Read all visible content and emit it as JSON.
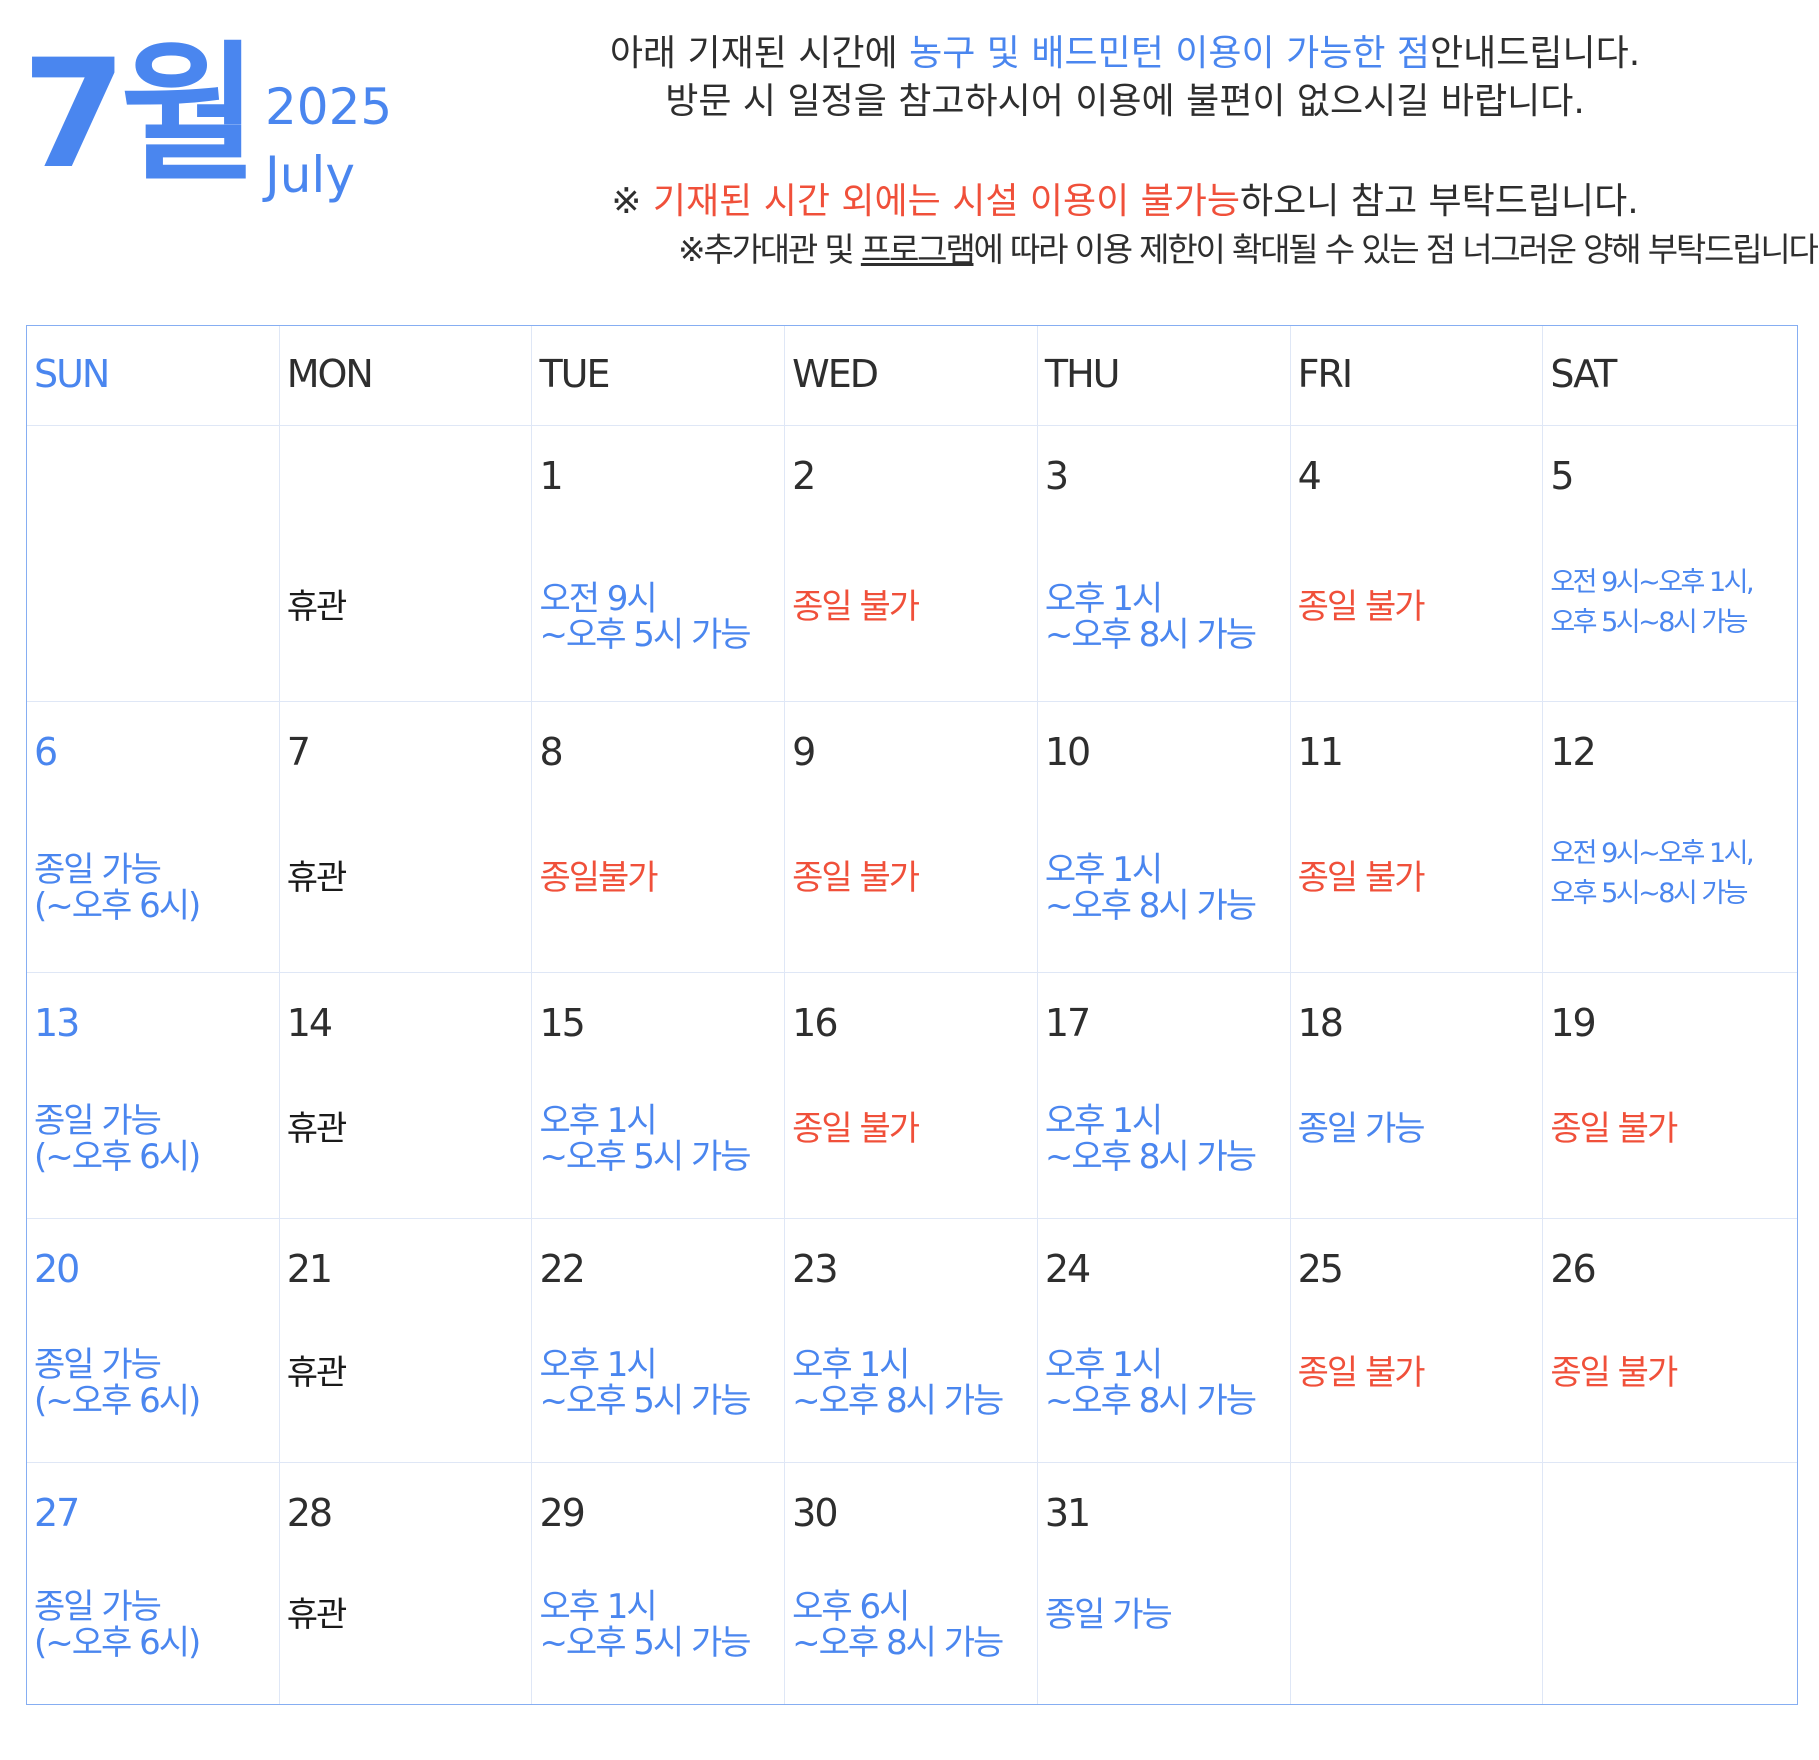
{
  "header": {
    "month_ko": "7월",
    "year": "2025",
    "month_en": "July"
  },
  "notice": {
    "line1_a": "아래 기재된 시간에 ",
    "line1_b": "농구 및 배드민턴 이용이 가능한 점",
    "line1_c": "안내드립니다.",
    "line2": "방문 시 일정을 참고하시어 이용에 불편이 없으시길 바랍니다.",
    "line3_a": "※ ",
    "line3_b": "기재된 시간 외에는 시설 이용이 불가능",
    "line3_c": "하오니 참고 부탁드립니다.",
    "line4_a": "※추가대관 및 ",
    "line4_b": "프로그램",
    "line4_c": "에 따라 이용 제한이 확대될 수 있는 점 너그러운 양해 부탁드립니다."
  },
  "weekdays": [
    "SUN",
    "MON",
    "TUE",
    "WED",
    "THU",
    "FRI",
    "SAT"
  ],
  "colors": {
    "accent": "#4a86ef",
    "warning": "#f0503a",
    "text": "#2e2e2e",
    "border": "#86aef2"
  },
  "weeks": [
    [
      {
        "date": "",
        "status": "",
        "color": ""
      },
      {
        "date": "",
        "status": "휴관",
        "color": "black"
      },
      {
        "date": "1",
        "status": "오전 9시\n~오후 5시 가능",
        "color": "blue"
      },
      {
        "date": "2",
        "status": "종일 불가",
        "color": "red"
      },
      {
        "date": "3",
        "status": "오후 1시\n~오후 8시 가능",
        "color": "blue"
      },
      {
        "date": "4",
        "status": "종일 불가",
        "color": "red"
      },
      {
        "date": "5",
        "status": "오전 9시~오후 1시,\n오후 5시~8시 가능",
        "color": "blue",
        "small": true
      }
    ],
    [
      {
        "date": "6",
        "status": "종일 가능\n(~오후 6시)",
        "color": "blue"
      },
      {
        "date": "7",
        "status": "휴관",
        "color": "black"
      },
      {
        "date": "8",
        "status": "종일불가",
        "color": "red"
      },
      {
        "date": "9",
        "status": "종일 불가",
        "color": "red"
      },
      {
        "date": "10",
        "status": "오후 1시\n~오후 8시 가능",
        "color": "blue"
      },
      {
        "date": "11",
        "status": "종일 불가",
        "color": "red"
      },
      {
        "date": "12",
        "status": "오전 9시~오후 1시,\n오후 5시~8시 가능",
        "color": "blue",
        "small": true
      }
    ],
    [
      {
        "date": "13",
        "status": "종일 가능\n(~오후 6시)",
        "color": "blue"
      },
      {
        "date": "14",
        "status": "휴관",
        "color": "black"
      },
      {
        "date": "15",
        "status": "오후 1시\n~오후 5시 가능",
        "color": "blue"
      },
      {
        "date": "16",
        "status": "종일 불가",
        "color": "red"
      },
      {
        "date": "17",
        "status": "오후 1시\n~오후 8시 가능",
        "color": "blue"
      },
      {
        "date": "18",
        "status": "종일 가능",
        "color": "blue"
      },
      {
        "date": "19",
        "status": "종일 불가",
        "color": "red"
      }
    ],
    [
      {
        "date": "20",
        "status": "종일 가능\n(~오후 6시)",
        "color": "blue"
      },
      {
        "date": "21",
        "status": "휴관",
        "color": "black"
      },
      {
        "date": "22",
        "status": "오후 1시\n~오후 5시 가능",
        "color": "blue"
      },
      {
        "date": "23",
        "status": "오후 1시\n~오후 8시 가능",
        "color": "blue"
      },
      {
        "date": "24",
        "status": "오후 1시\n~오후 8시 가능",
        "color": "blue"
      },
      {
        "date": "25",
        "status": "종일 불가",
        "color": "red"
      },
      {
        "date": "26",
        "status": "종일 불가",
        "color": "red"
      }
    ],
    [
      {
        "date": "27",
        "status": "종일 가능\n(~오후 6시)",
        "color": "blue"
      },
      {
        "date": "28",
        "status": "휴관",
        "color": "black"
      },
      {
        "date": "29",
        "status": "오후 1시\n~오후 5시 가능",
        "color": "blue"
      },
      {
        "date": "30",
        "status": "오후 6시\n~오후 8시 가능",
        "color": "blue"
      },
      {
        "date": "31",
        "status": "종일 가능",
        "color": "blue"
      },
      {
        "date": "",
        "status": "",
        "color": ""
      },
      {
        "date": "",
        "status": "",
        "color": ""
      }
    ]
  ]
}
